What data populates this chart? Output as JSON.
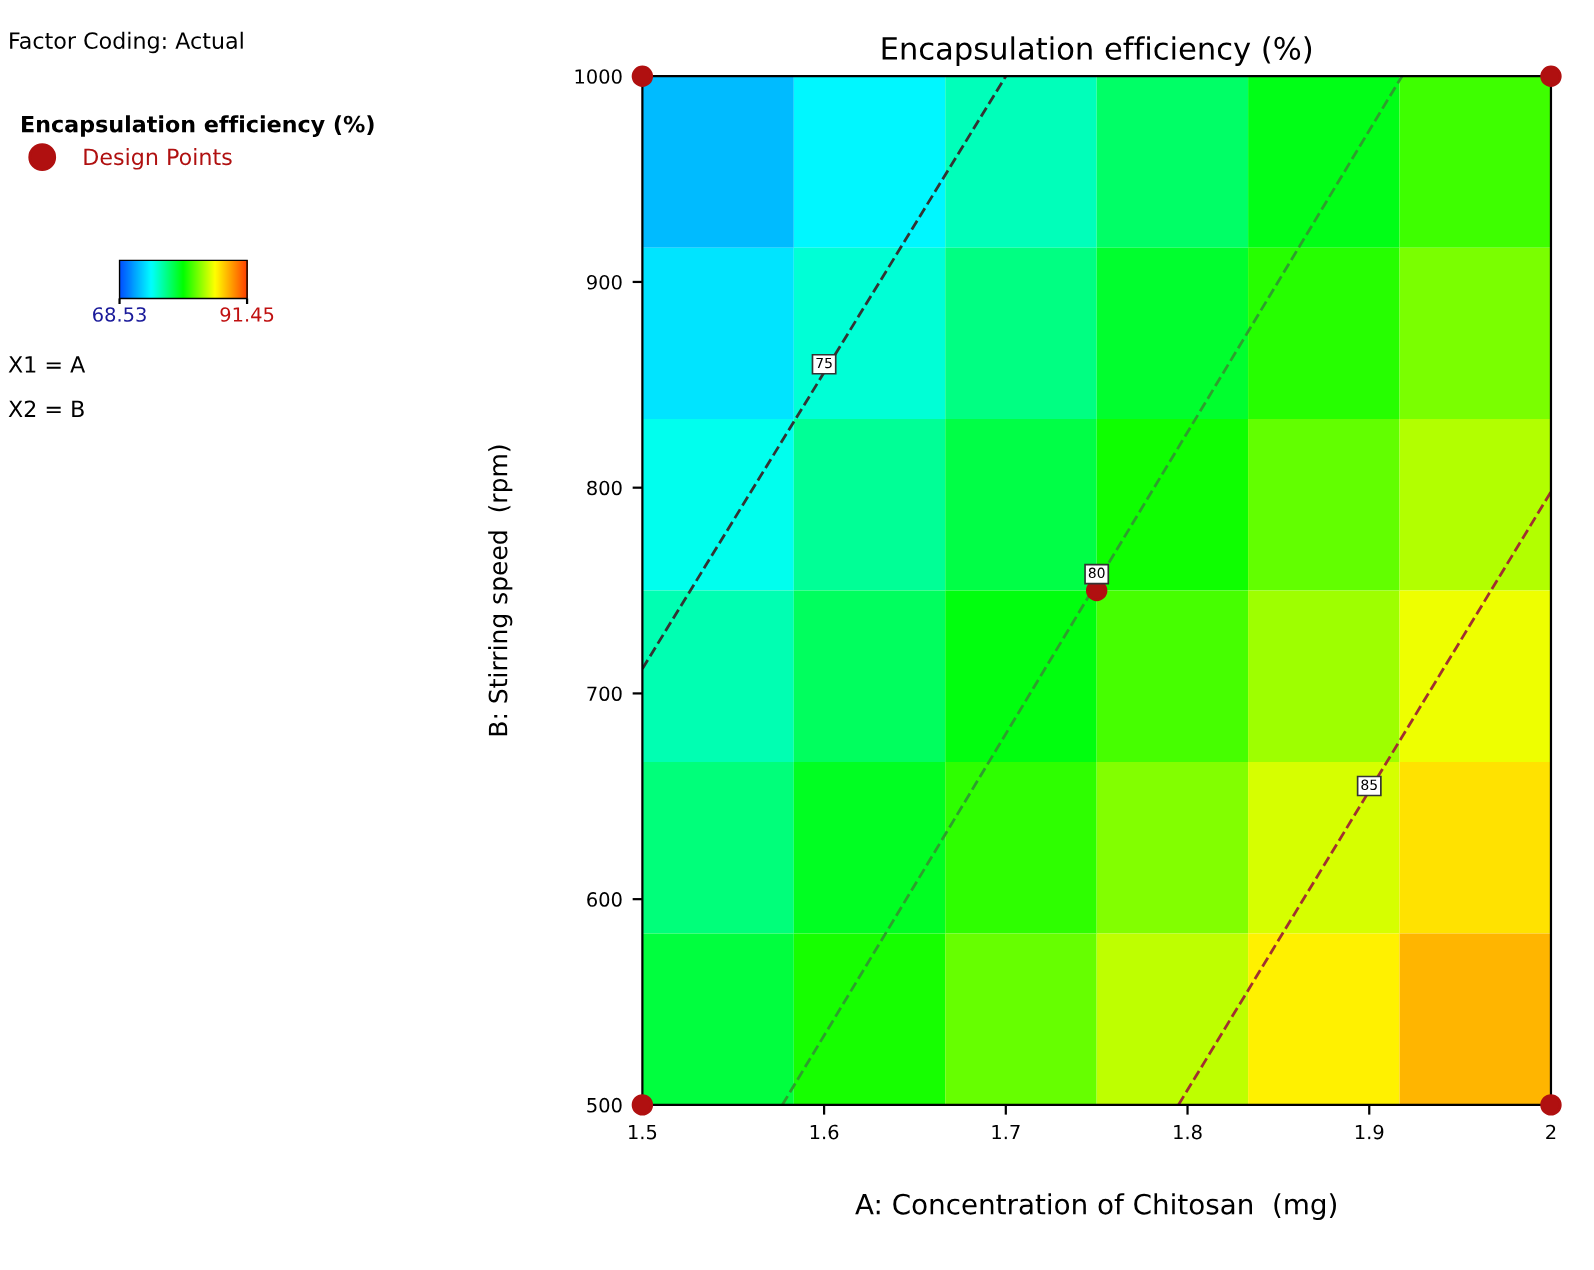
{
  "chart_data": {
    "type": "heatmap",
    "title": "Encapsulation efficiency (%)",
    "xlabel": "A: Concentration of Chitosan  (mg)",
    "ylabel": "B: Stirring speed  (rpm)",
    "legend_title": "Encapsulation efficiency (%)",
    "legend": "left",
    "xlim": [
      1.5,
      2
    ],
    "xticks": [
      1.5,
      1.6,
      1.7,
      1.8,
      1.9,
      2
    ],
    "ylim": [
      500,
      1000
    ],
    "yticks": [
      500,
      600,
      700,
      800,
      900,
      1000
    ],
    "clim": [
      68.53,
      91.45
    ],
    "cticks": [
      68.53,
      91.45
    ],
    "colors": [
      "#0050ff",
      "#00ffff",
      "#00ff00",
      "#ffff00",
      "#ff4000"
    ],
    "cells": [
      [
        72.1,
        74.0,
        75.8,
        77.7,
        79.5,
        81.4
      ],
      [
        73.4,
        75.2,
        77.1,
        79.0,
        80.8,
        82.7
      ],
      [
        74.7,
        76.6,
        78.4,
        80.3,
        82.2,
        84.0
      ],
      [
        76.0,
        77.9,
        79.7,
        81.6,
        83.5,
        85.3
      ],
      [
        77.3,
        79.2,
        81.0,
        82.9,
        84.8,
        86.6
      ],
      [
        78.6,
        80.5,
        82.3,
        84.2,
        86.1,
        87.9
      ]
    ],
    "series": [
      {
        "type": "line",
        "color": "#333333",
        "line_style": "dashed",
        "x": [
          1.5,
          1.7
        ],
        "values": [
          712,
          1000
        ]
      },
      {
        "type": "line",
        "color": "#2e9e2e",
        "line_style": "dashed",
        "x": [
          1.577,
          1.918
        ],
        "values": [
          500,
          1000
        ]
      },
      {
        "type": "line",
        "color": "#a03030",
        "line_style": "dashed",
        "x": [
          1.795,
          2
        ],
        "values": [
          500,
          798
        ]
      },
      {
        "type": "scatter",
        "name": "Design Points",
        "color": "#b01010",
        "marker": "circle",
        "x": [
          1.5,
          1.5,
          2,
          2,
          1.75
        ],
        "values": [
          500,
          1000,
          500,
          1000,
          750
        ]
      }
    ],
    "annotations": [
      "Factor Coding: Actual",
      {
        "text": "75",
        "x": 1.6,
        "y": 860
      },
      {
        "text": "80",
        "x": 1.75,
        "y": 758
      },
      {
        "text": "85",
        "x": 1.9,
        "y": 655
      },
      "X1 = A",
      "X2 = B"
    ]
  }
}
